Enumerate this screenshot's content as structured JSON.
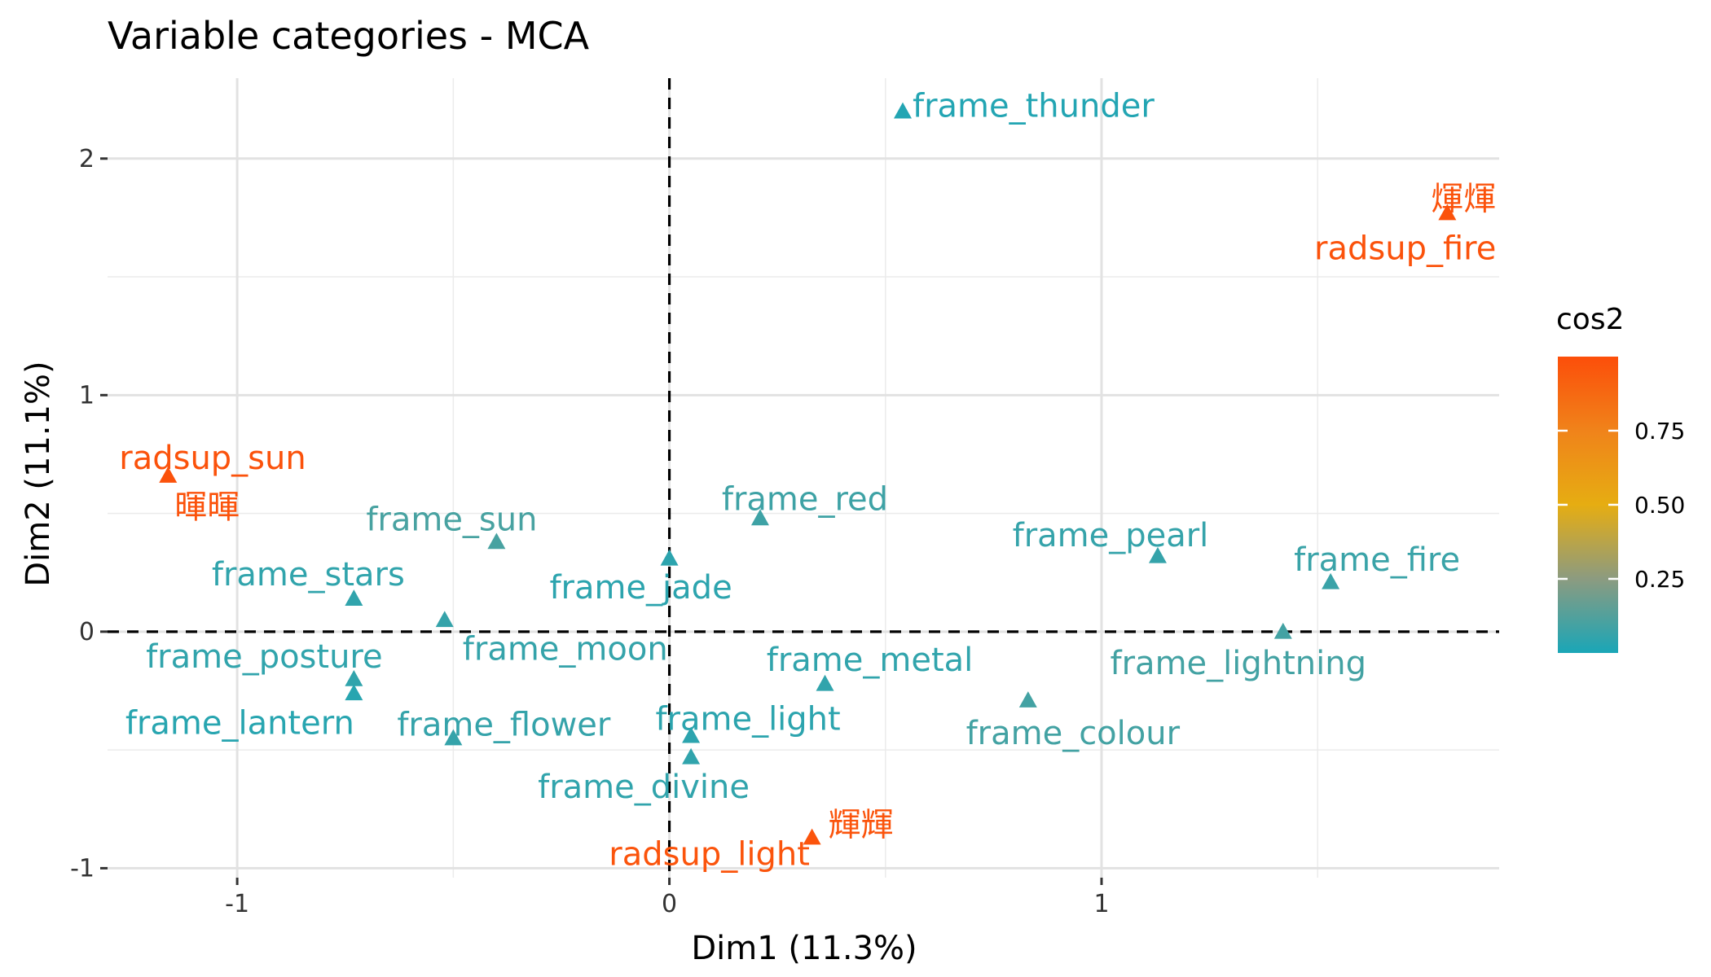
{
  "title": "Variable categories - MCA",
  "chart_data": {
    "type": "scatter",
    "title": "Variable categories - MCA",
    "xlabel": "Dim1 (11.3%)",
    "ylabel": "Dim2 (11.1%)",
    "xlim": [
      -1.3,
      1.92
    ],
    "ylim": [
      -1.04,
      2.34
    ],
    "x_ticks": [
      -1,
      0,
      1
    ],
    "y_ticks": [
      -1,
      0,
      1,
      2
    ],
    "grid": true,
    "reference_lines": {
      "x": 0,
      "y": 0,
      "style": "dashed"
    },
    "marker": "triangle",
    "color_by": "cos2",
    "legend": {
      "title": "cos2",
      "placement": "right",
      "ticks": [
        "0.75",
        "0.50",
        "0.25"
      ],
      "tick_values": [
        0.75,
        0.5,
        0.25
      ],
      "range": [
        0.0,
        1.0
      ],
      "colors": [
        "#1aa6b7",
        "#8c9b80",
        "#e6ad12",
        "#f0831a",
        "#fc4e0a"
      ]
    },
    "points": [
      {
        "label": "frame_thunder",
        "x": 0.54,
        "y": 2.2,
        "cos2": 0.02,
        "anchor": "start",
        "label_dx": 12,
        "label_dy": -5
      },
      {
        "label": "radsup_fire",
        "x": 1.8,
        "y": 1.77,
        "cos2": 0.98,
        "anchor": "end",
        "label_dx": 60,
        "label_dy": 45
      },
      {
        "label": "煇煇",
        "x": 1.8,
        "y": 1.77,
        "cos2": 0.98,
        "anchor": "end",
        "label_dx": 60,
        "label_dy": -16
      },
      {
        "label": "radsup_sun",
        "x": -1.16,
        "y": 0.66,
        "cos2": 0.98,
        "anchor": "start",
        "label_dx": -60,
        "label_dy": -20
      },
      {
        "label": "暉暉",
        "x": -1.16,
        "y": 0.66,
        "cos2": 0.98,
        "anchor": "start",
        "label_dx": 8,
        "label_dy": 40
      },
      {
        "label": "frame_red",
        "x": 0.21,
        "y": 0.48,
        "cos2": 0.08,
        "anchor": "middle",
        "label_dx": 55,
        "label_dy": -22
      },
      {
        "label": "frame_sun",
        "x": -0.4,
        "y": 0.38,
        "cos2": 0.1,
        "anchor": "middle",
        "label_dx": -55,
        "label_dy": -26
      },
      {
        "label": "frame_pearl",
        "x": 1.13,
        "y": 0.32,
        "cos2": 0.06,
        "anchor": "middle",
        "label_dx": -58,
        "label_dy": -24
      },
      {
        "label": "frame_jade",
        "x": 0.0,
        "y": 0.31,
        "cos2": 0.04,
        "anchor": "middle",
        "label_dx": -35,
        "label_dy": 37
      },
      {
        "label": "frame_fire",
        "x": 1.53,
        "y": 0.21,
        "cos2": 0.07,
        "anchor": "middle",
        "label_dx": 57,
        "label_dy": -26
      },
      {
        "label": "frame_stars",
        "x": -0.73,
        "y": 0.14,
        "cos2": 0.05,
        "anchor": "middle",
        "label_dx": -56,
        "label_dy": -28
      },
      {
        "label": "frame_moon",
        "x": -0.52,
        "y": 0.05,
        "cos2": 0.06,
        "anchor": "middle",
        "label_dx": 148,
        "label_dy": 37
      },
      {
        "label": "frame_lightning",
        "x": 1.42,
        "y": 0.0,
        "cos2": 0.09,
        "anchor": "middle",
        "label_dx": -55,
        "label_dy": 40
      },
      {
        "label": "frame_posture",
        "x": -0.73,
        "y": -0.2,
        "cos2": 0.05,
        "anchor": "middle",
        "label_dx": -110,
        "label_dy": -26
      },
      {
        "label": "frame_metal",
        "x": 0.36,
        "y": -0.22,
        "cos2": 0.05,
        "anchor": "middle",
        "label_dx": 55,
        "label_dy": -28
      },
      {
        "label": "frame_colour",
        "x": 0.83,
        "y": -0.29,
        "cos2": 0.09,
        "anchor": "middle",
        "label_dx": 55,
        "label_dy": 42
      },
      {
        "label": "frame_lantern",
        "x": -0.73,
        "y": -0.26,
        "cos2": 0.03,
        "anchor": "middle",
        "label_dx": -140,
        "label_dy": 38
      },
      {
        "label": "frame_flower",
        "x": -0.5,
        "y": -0.45,
        "cos2": 0.06,
        "anchor": "middle",
        "label_dx": 62,
        "label_dy": -15
      },
      {
        "label": "frame_light",
        "x": 0.05,
        "y": -0.44,
        "cos2": 0.04,
        "anchor": "middle",
        "label_dx": 70,
        "label_dy": -19
      },
      {
        "label": "frame_divine",
        "x": 0.05,
        "y": -0.53,
        "cos2": 0.05,
        "anchor": "middle",
        "label_dx": -58,
        "label_dy": 38
      },
      {
        "label": "radsup_light",
        "x": 0.33,
        "y": -0.87,
        "cos2": 0.97,
        "anchor": "middle",
        "label_dx": -126,
        "label_dy": 22
      },
      {
        "label": "輝輝",
        "x": 0.33,
        "y": -0.87,
        "cos2": 0.97,
        "anchor": "start",
        "label_dx": 20,
        "label_dy": -14
      }
    ]
  }
}
